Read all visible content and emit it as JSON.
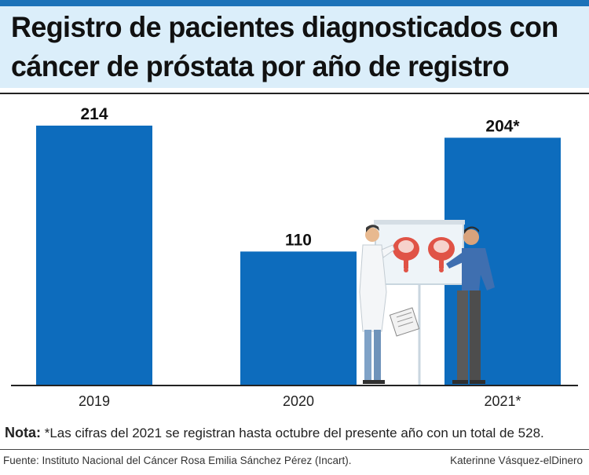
{
  "header": {
    "title_line1": "Registro de pacientes diagnosticados con",
    "title_line2": "cáncer de próstata por año de registro"
  },
  "chart_data": {
    "type": "bar",
    "title": "Registro de pacientes diagnosticados con cáncer de próstata por año de registro",
    "categories": [
      "2019",
      "2020",
      "2021*"
    ],
    "values": [
      214,
      110,
      204
    ],
    "value_labels": [
      "214",
      "110",
      "204*"
    ],
    "xlabel": "",
    "ylabel": "",
    "ylim": [
      0,
      214
    ],
    "grid": false,
    "legend": "none",
    "bar_color": "#0d6cbd"
  },
  "footer": {
    "note_label": "Nota:",
    "note_text": " *Las cifras del 2021 se registran hasta octubre del presente año con un total de 528.",
    "source": "Fuente: Instituto Nacional del Cáncer Rosa Emilia Sánchez Pérez (Incart).",
    "credit": "Katerinne Vásquez-elDinero"
  },
  "illustration": {
    "name": "doctor-and-patient-reviewing-prostate-diagram",
    "icon": "medical-consultation-icon"
  }
}
